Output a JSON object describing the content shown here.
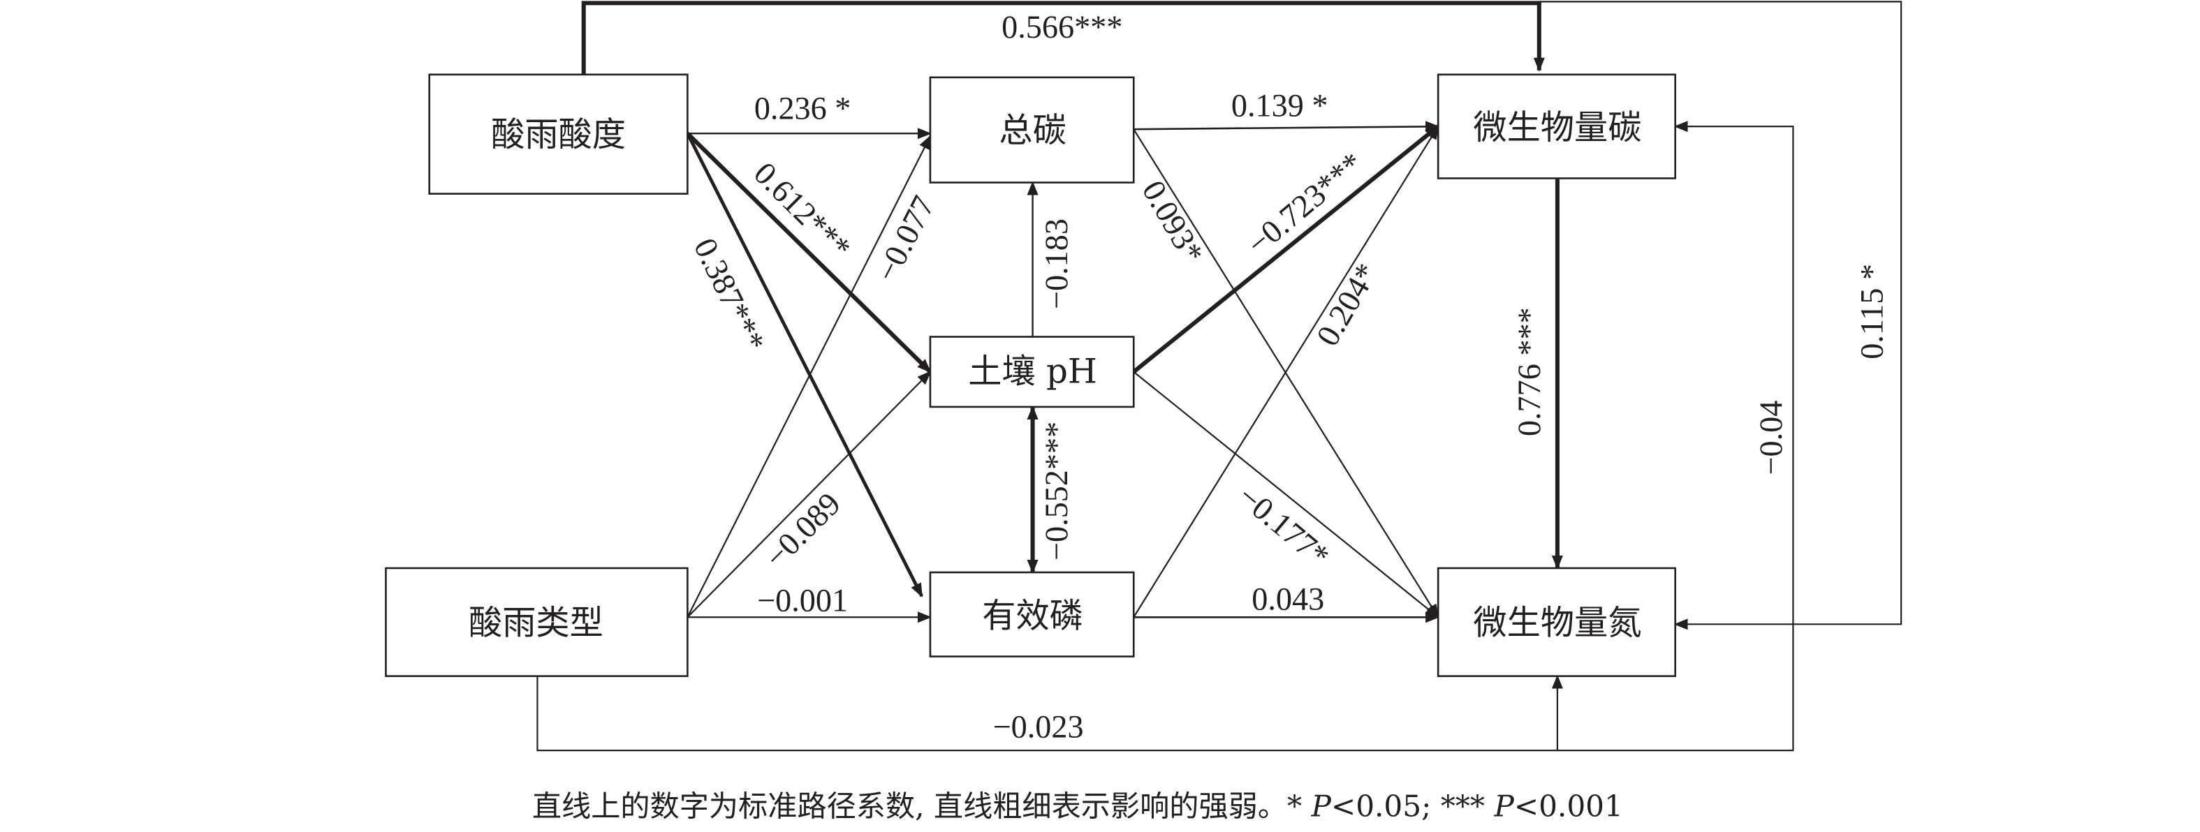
{
  "nodes": {
    "acidity": "酸雨酸度",
    "rain_type": "酸雨类型",
    "total_carbon": "总碳",
    "soil_ph": "土壤 pH",
    "avail_p": "有效磷",
    "mbc": "微生物量碳",
    "mbn": "微生物量氮"
  },
  "paths": {
    "acidity_tc": "0.236 *",
    "acidity_ph": "0.612***",
    "acidity_p": "0.387***",
    "type_tc": "−0.077",
    "type_ph": "−0.089",
    "type_p": "−0.001",
    "ph_tc": "−0.183",
    "ph_p": "−0.552***",
    "tc_mbc": "0.139 *",
    "tc_mbn": "0.093*",
    "ph_mbc": "−0.723***",
    "ph_mbn": "−0.177*",
    "p_mbc": "0.204*",
    "p_mbn": "0.043",
    "mbc_mbn": "0.776 ***",
    "acidity_mbc": "0.566***",
    "acidity_mbn": "0.115 *",
    "type_mbn": "−0.023",
    "type_mbc": "−0.04"
  },
  "caption": {
    "text": "直线上的数字为标准路径系数, 直线粗细表示影响的强弱。* ",
    "p1": "P",
    "t1": "<0.05; *** ",
    "p2": "P",
    "t2": "<0.001"
  },
  "colors": {
    "line": "#231f20"
  }
}
